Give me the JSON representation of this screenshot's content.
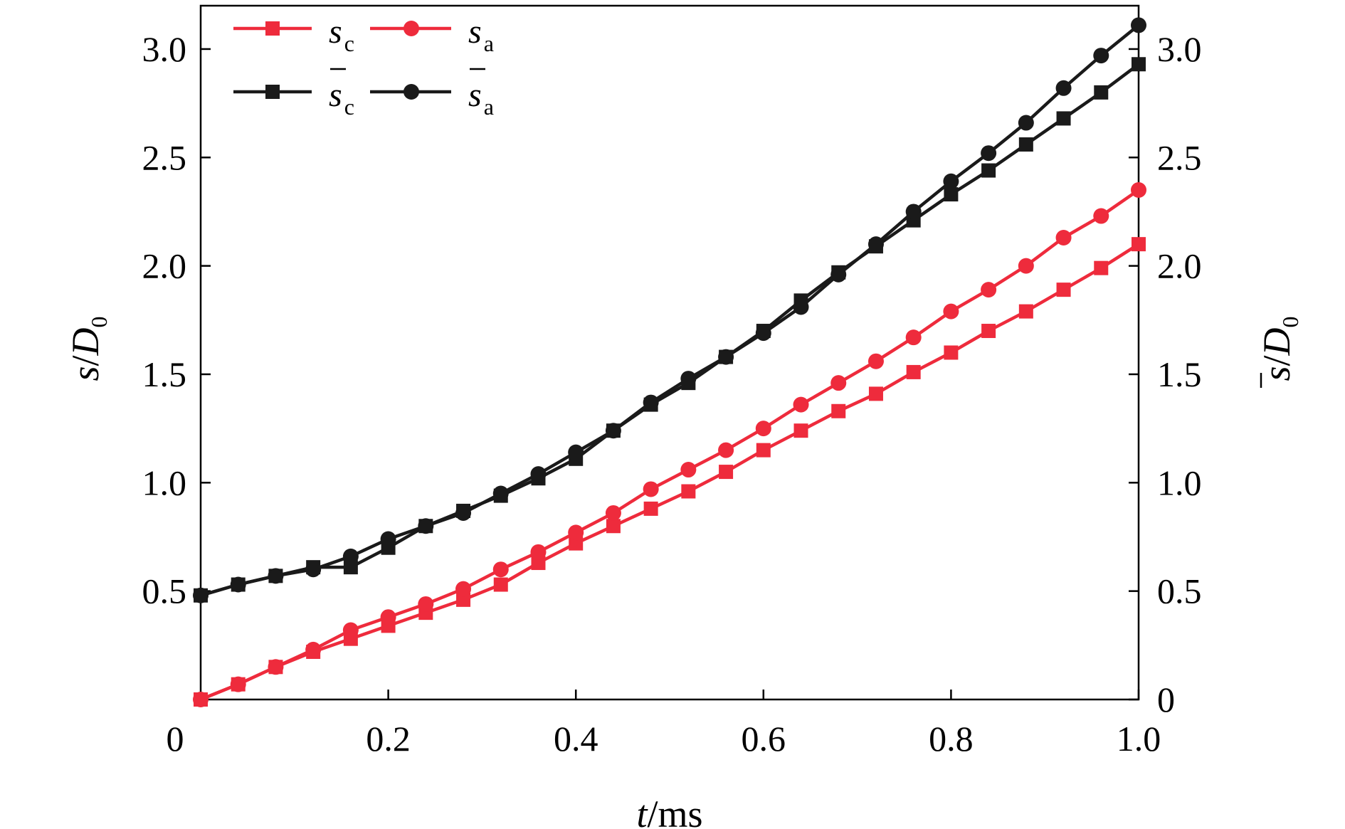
{
  "chart_data": {
    "type": "line",
    "xlabel": {
      "italic": "t",
      "rest": "/ms"
    },
    "ylabel_left": {
      "italic": "s",
      "rest": "/",
      "italic2": "D",
      "sub": "0"
    },
    "ylabel_right": {
      "italic": "s",
      "overbar": true,
      "rest": "/",
      "italic2": "D",
      "sub": "0"
    },
    "xlim": [
      0,
      1.0
    ],
    "ylim": [
      0,
      3.2
    ],
    "x_ticks": [
      0.2,
      0.4,
      0.6,
      0.8,
      1.0
    ],
    "x_tick_labels": [
      "0.2",
      "0.4",
      "0.6",
      "0.8",
      "1.0"
    ],
    "x_origin_label": "0",
    "y_ticks": [
      0.5,
      1.0,
      1.5,
      2.0,
      2.5,
      3.0
    ],
    "y_tick_labels": [
      "0.5",
      "1.0",
      "1.5",
      "2.0",
      "2.5",
      "3.0"
    ],
    "y_right_tick_labels": [
      "0",
      "0.5",
      "1.0",
      "1.5",
      "2.0",
      "2.5",
      "3.0"
    ],
    "y_right_ticks": [
      0,
      0.5,
      1.0,
      1.5,
      2.0,
      2.5,
      3.0
    ],
    "grid": false,
    "legend_position": "top-left",
    "x": [
      0,
      0.04,
      0.08,
      0.12,
      0.16,
      0.2,
      0.24,
      0.28,
      0.32,
      0.36,
      0.4,
      0.44,
      0.48,
      0.52,
      0.56,
      0.6,
      0.64,
      0.68,
      0.72,
      0.76,
      0.8,
      0.84,
      0.88,
      0.92,
      0.96,
      1.0
    ],
    "series": [
      {
        "name": "s",
        "sub": "c",
        "overbar": false,
        "color": "#ee2b3c",
        "marker": "square",
        "values": [
          0.0,
          0.07,
          0.15,
          0.22,
          0.28,
          0.34,
          0.4,
          0.46,
          0.53,
          0.63,
          0.72,
          0.8,
          0.88,
          0.96,
          1.05,
          1.15,
          1.24,
          1.33,
          1.41,
          1.51,
          1.6,
          1.7,
          1.79,
          1.89,
          1.99,
          2.1
        ]
      },
      {
        "name": "s",
        "sub": "a",
        "overbar": false,
        "color": "#ee2b3c",
        "marker": "circle",
        "values": [
          0.0,
          0.07,
          0.15,
          0.23,
          0.32,
          0.38,
          0.44,
          0.51,
          0.6,
          0.68,
          0.77,
          0.86,
          0.97,
          1.06,
          1.15,
          1.25,
          1.36,
          1.46,
          1.56,
          1.67,
          1.79,
          1.89,
          2.0,
          2.13,
          2.23,
          2.35
        ]
      },
      {
        "name": "s",
        "sub": "c",
        "overbar": true,
        "color": "#1a1a1a",
        "marker": "square",
        "values": [
          0.48,
          0.53,
          0.57,
          0.61,
          0.61,
          0.7,
          0.8,
          0.87,
          0.94,
          1.02,
          1.11,
          1.24,
          1.36,
          1.46,
          1.58,
          1.7,
          1.84,
          1.97,
          2.09,
          2.21,
          2.33,
          2.44,
          2.56,
          2.68,
          2.8,
          2.93
        ]
      },
      {
        "name": "s",
        "sub": "a",
        "overbar": true,
        "color": "#1a1a1a",
        "marker": "circle",
        "values": [
          0.48,
          0.53,
          0.57,
          0.6,
          0.66,
          0.74,
          0.8,
          0.86,
          0.95,
          1.04,
          1.14,
          1.24,
          1.37,
          1.48,
          1.58,
          1.69,
          1.81,
          1.96,
          2.1,
          2.25,
          2.39,
          2.52,
          2.66,
          2.82,
          2.97,
          3.11
        ]
      }
    ]
  }
}
